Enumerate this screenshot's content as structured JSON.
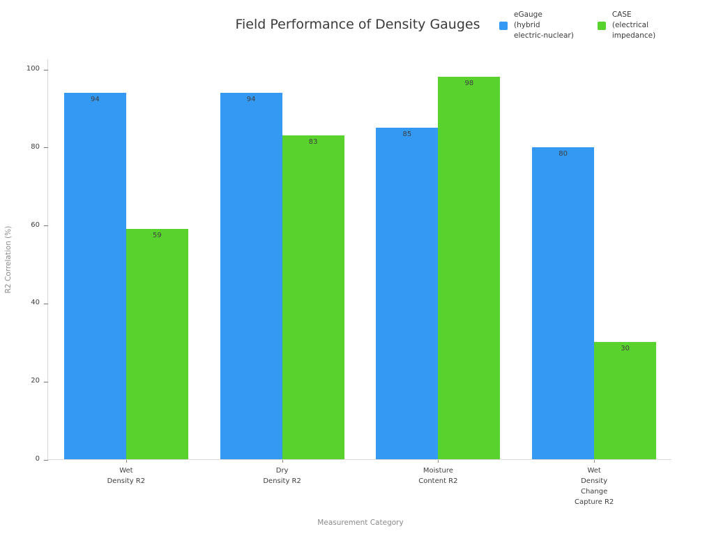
{
  "title": "Field Performance of Density Gauges",
  "legend": [
    {
      "label": "eGauge\n(hybrid\nelectric-nuclear)",
      "color": "#3399f3"
    },
    {
      "label": "CASE\n(electrical\nimpedance)",
      "color": "#5ad22d"
    }
  ],
  "chart_data": {
    "type": "bar",
    "title": "Field Performance of Density Gauges",
    "xlabel": "Measurement Category",
    "ylabel": "R2 Correlation (%)",
    "categories": [
      "Wet\nDensity R2",
      "Dry\nDensity R2",
      "Moisture\nContent R2",
      "Wet\nDensity\nChange\nCapture R2"
    ],
    "series": [
      {
        "name": "eGauge (hybrid electric-nuclear)",
        "color": "#3399f3",
        "values": [
          94,
          94,
          85,
          80
        ]
      },
      {
        "name": "CASE (electrical impedance)",
        "color": "#5ad22d",
        "values": [
          59,
          83,
          98,
          30
        ]
      }
    ],
    "ylim": [
      0,
      100
    ],
    "yticks": [
      0,
      20,
      40,
      60,
      80,
      100
    ],
    "grid": false,
    "legend_position": "top-right",
    "bar_value_labels": true
  }
}
